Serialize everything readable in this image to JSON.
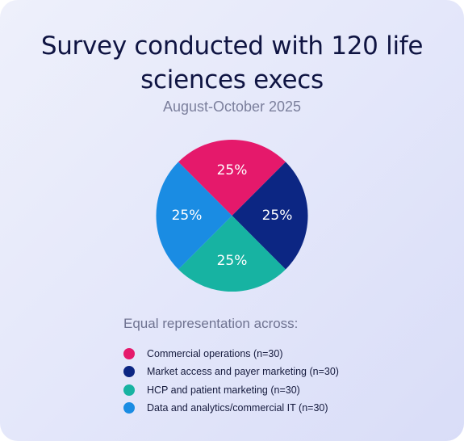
{
  "chart_data": {
    "type": "pie",
    "title": "Survey conducted with 120 life sciences execs",
    "subtitle": "August-October 2025",
    "legend_title": "Equal representation across:",
    "legend_placement": "bottom",
    "slices": [
      {
        "name": "Commercial operations (n=30)",
        "value": 25,
        "label": "25%",
        "color": "#e5196b"
      },
      {
        "name": "Market access and payer marketing (n=30)",
        "value": 25,
        "label": "25%",
        "color": "#0c2683"
      },
      {
        "name": "HCP and patient marketing (n=30)",
        "value": 25,
        "label": "25%",
        "color": "#17b3a2"
      },
      {
        "name": "Data and analytics/commercial IT (n=30)",
        "value": 25,
        "label": "25%",
        "color": "#1a8ce3"
      }
    ]
  }
}
